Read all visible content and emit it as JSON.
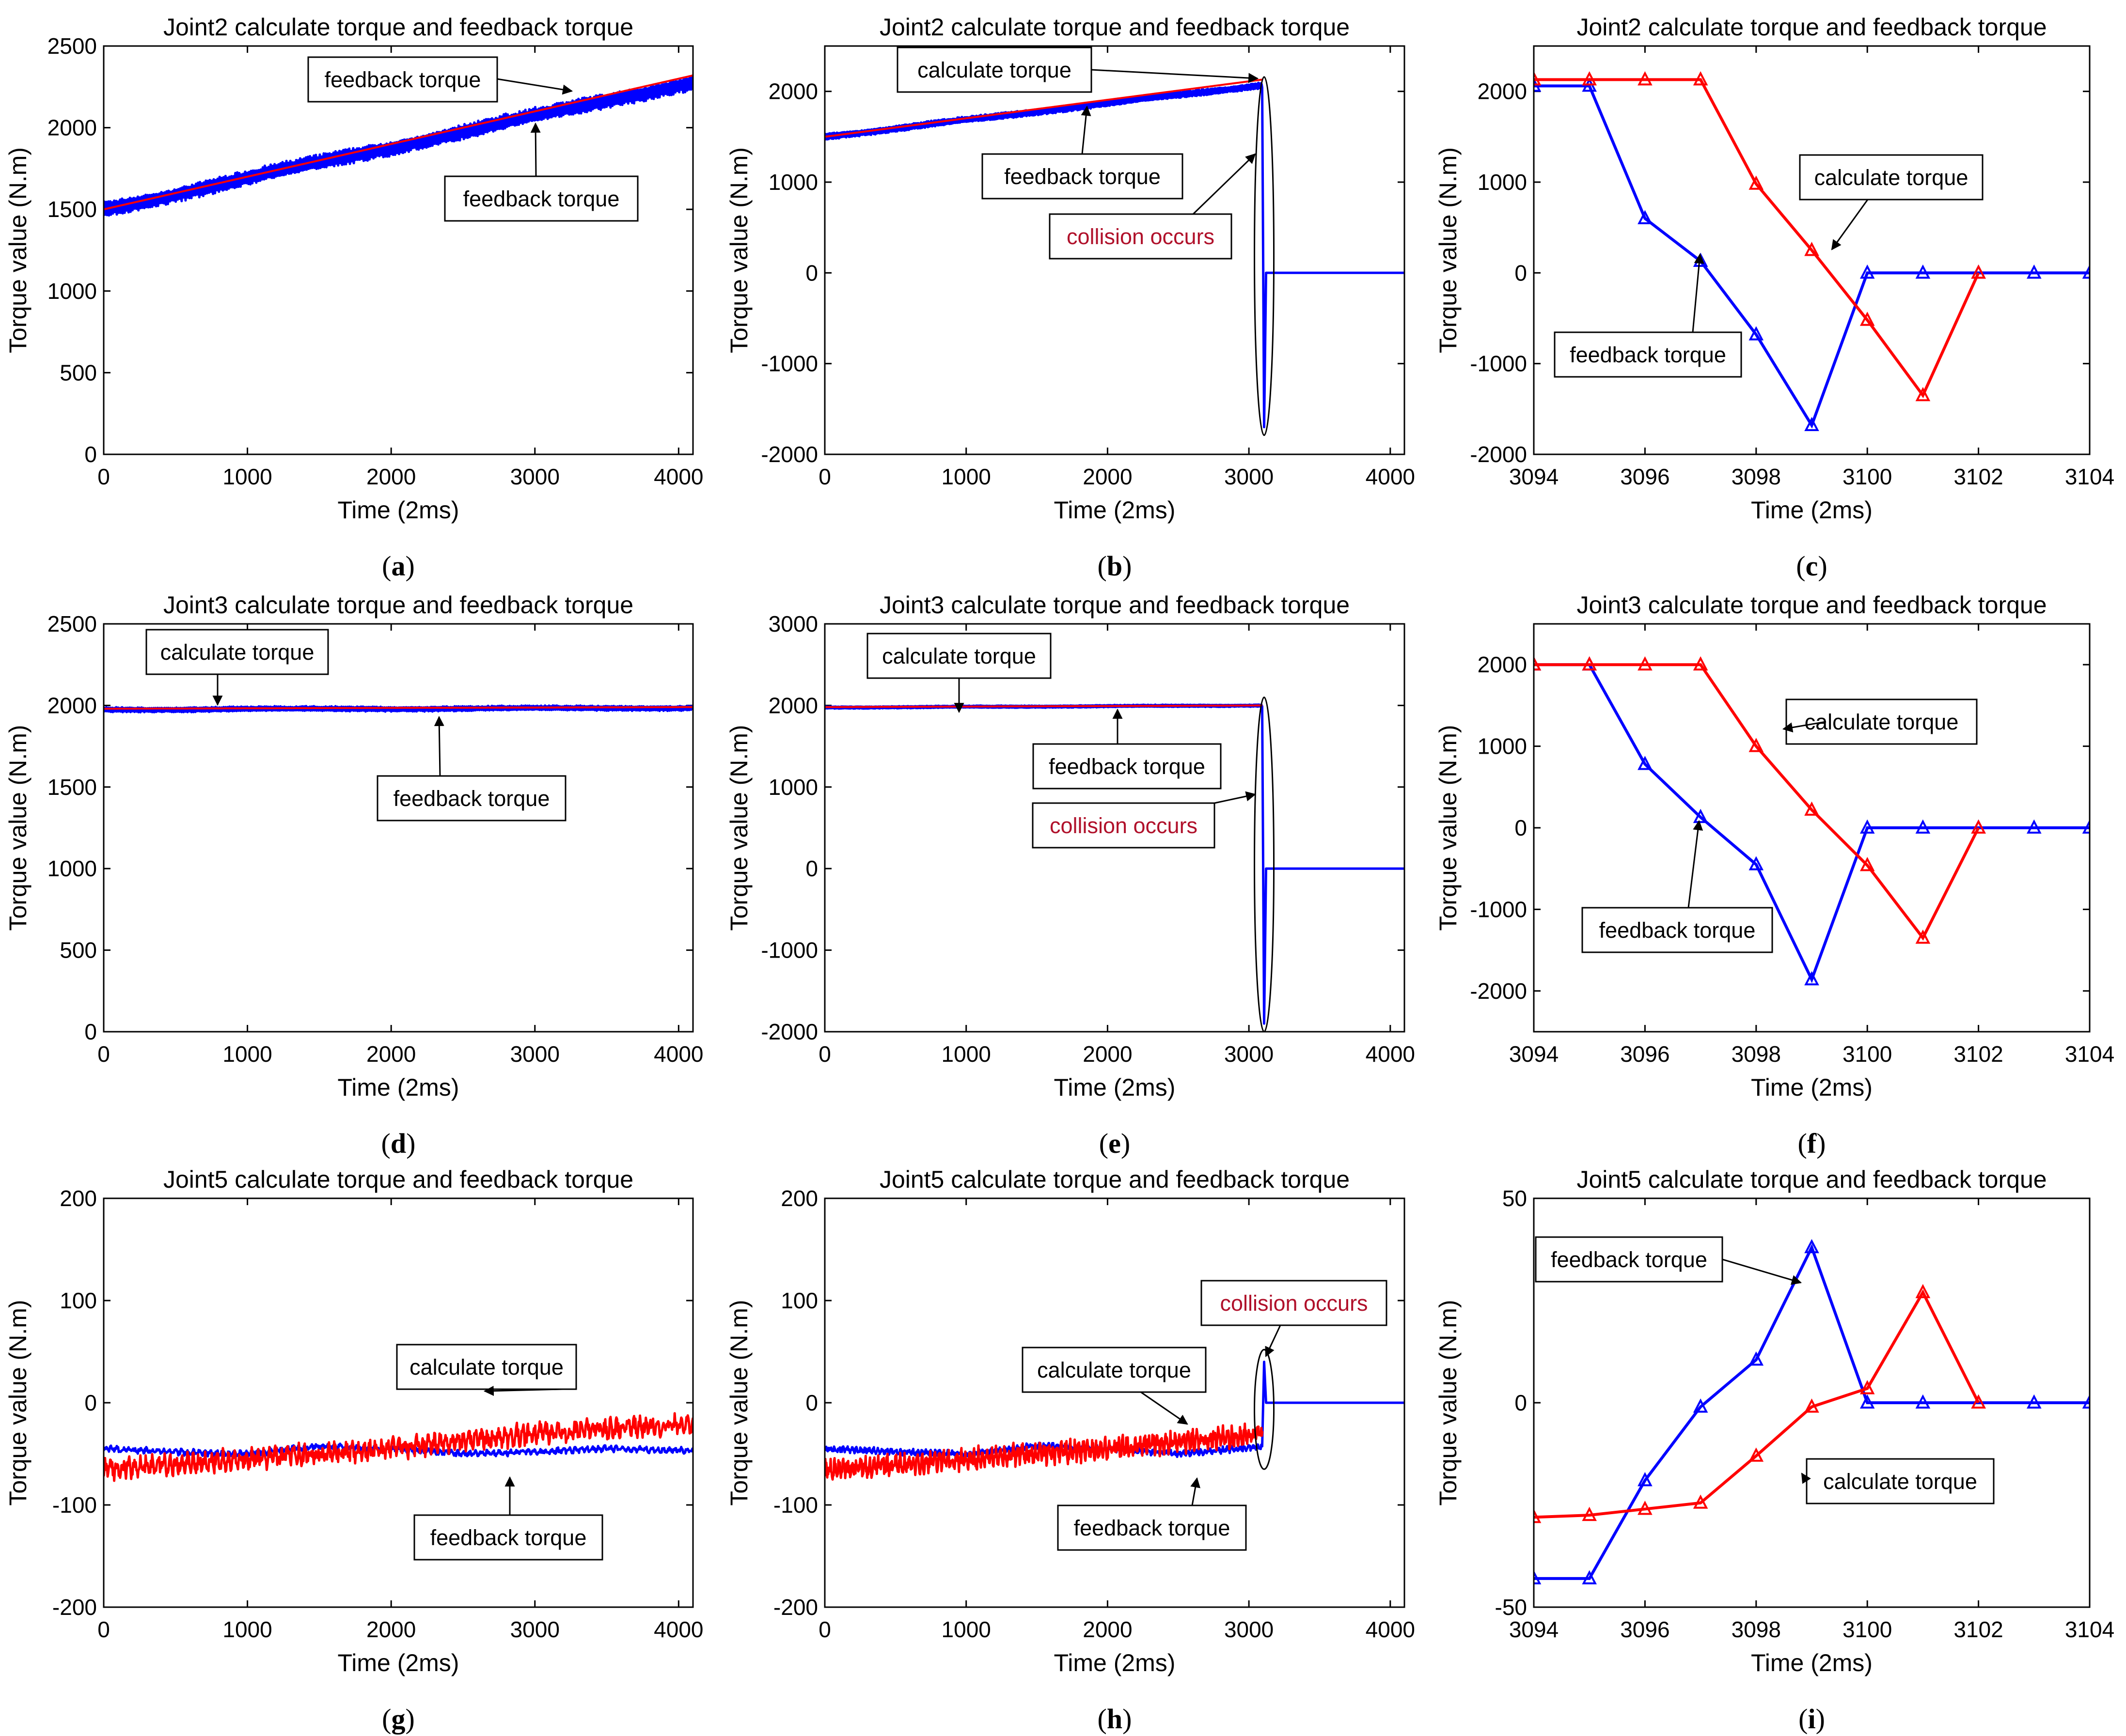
{
  "figure": {
    "colors": {
      "calculate": "#ff0000",
      "feedback": "#0000ff",
      "axis": "#000000",
      "collision_text": "#b0102a"
    },
    "panel_labels": [
      "(a)",
      "(b)",
      "(c)",
      "(d)",
      "(e)",
      "(f)",
      "(g)",
      "(h)",
      "(i)"
    ]
  },
  "chart_data": [
    {
      "id": "a",
      "type": "line",
      "label": "a",
      "label_parts": [
        "(",
        "a",
        ")"
      ],
      "title": "Joint2 calculate torque and feedback torque",
      "xlabel": "Time (2ms)",
      "ylabel": "Torque value (N.m)",
      "xlim": [
        0,
        4100
      ],
      "ylim": [
        0,
        2500
      ],
      "xticks": [
        0,
        1000,
        2000,
        3000,
        4000
      ],
      "yticks": [
        0,
        500,
        1000,
        1500,
        2000,
        2500
      ],
      "series": [
        {
          "name": "calculate torque",
          "color": "red",
          "x": [
            0,
            4100
          ],
          "y": [
            1500,
            2320
          ]
        },
        {
          "name": "feedback torque",
          "color": "blue",
          "x": [
            0,
            4100
          ],
          "y": [
            1500,
            2280
          ],
          "oscillation": 55
        }
      ],
      "annotations": [
        {
          "text": "feedback torque"
        },
        {
          "text": "feedback torque"
        }
      ]
    },
    {
      "id": "b",
      "type": "line",
      "label": "b",
      "label_parts": [
        "(",
        "b",
        ")"
      ],
      "title": "Joint2 calculate torque and feedback torque",
      "xlabel": "Time (2ms)",
      "ylabel": "Torque value (N.m)",
      "xlim": [
        0,
        4100
      ],
      "ylim": [
        -2000,
        2500
      ],
      "xticks": [
        0,
        1000,
        2000,
        3000,
        4000
      ],
      "yticks": [
        -2000,
        -1000,
        0,
        1000,
        2000
      ],
      "series": [
        {
          "name": "calculate torque",
          "color": "red",
          "x": [
            0,
            3095
          ],
          "y": [
            1500,
            2130
          ]
        },
        {
          "name": "feedback torque",
          "color": "blue",
          "x": [
            0,
            3094
          ],
          "y": [
            1500,
            2070
          ],
          "oscillation": 40,
          "collision_at": 3094,
          "collision_min": -1700,
          "after": 0
        }
      ],
      "annotations": [
        {
          "text": "calculate  torque"
        },
        {
          "text": "feedback torque"
        },
        {
          "text": "collision occurs"
        }
      ]
    },
    {
      "id": "c",
      "type": "line",
      "label": "c",
      "label_parts": [
        "(",
        "c",
        ")"
      ],
      "title": "Joint2 calculate torque and feedback torque",
      "xlabel": "Time (2ms)",
      "ylabel": "Torque value (N.m)",
      "xlim": [
        3094,
        3104
      ],
      "ylim": [
        -2000,
        2500
      ],
      "xticks": [
        3094,
        3096,
        3098,
        3100,
        3102,
        3104
      ],
      "yticks": [
        -2000,
        -1000,
        0,
        1000,
        2000
      ],
      "series": [
        {
          "name": "calculate torque",
          "color": "red",
          "x": [
            3094,
            3095,
            3096,
            3097,
            3098,
            3099,
            3100,
            3101,
            3102
          ],
          "y": [
            2130,
            2130,
            2130,
            2130,
            980,
            250,
            -520,
            -1350,
            0
          ]
        },
        {
          "name": "feedback torque",
          "color": "blue",
          "x": [
            3094,
            3095,
            3096,
            3097,
            3098,
            3099,
            3100,
            3101,
            3102,
            3103,
            3104
          ],
          "y": [
            2060,
            2060,
            600,
            130,
            -680,
            -1680,
            0,
            0,
            0,
            0,
            0
          ]
        }
      ],
      "annotations": [
        {
          "text": "calculate torque"
        },
        {
          "text": "feedback torque"
        }
      ]
    },
    {
      "id": "d",
      "type": "line",
      "label": "d",
      "label_parts": [
        "(",
        "d",
        ")"
      ],
      "title": "Joint3 calculate torque and feedback torque",
      "xlabel": "Time (2ms)",
      "ylabel": "Torque value (N.m)",
      "xlim": [
        0,
        4100
      ],
      "ylim": [
        0,
        2500
      ],
      "xticks": [
        0,
        1000,
        2000,
        3000,
        4000
      ],
      "yticks": [
        0,
        500,
        1000,
        1500,
        2000,
        2500
      ],
      "series": [
        {
          "name": "calculate torque",
          "color": "red",
          "x": [
            0,
            4100
          ],
          "y": [
            1980,
            1990
          ]
        },
        {
          "name": "feedback torque",
          "color": "blue",
          "x": [
            0,
            4100
          ],
          "y": [
            1975,
            1985
          ],
          "oscillation": 18
        }
      ],
      "annotations": [
        {
          "text": "calculate torque"
        },
        {
          "text": "feedback torque"
        }
      ]
    },
    {
      "id": "e",
      "type": "line",
      "label": "e",
      "label_parts": [
        "(",
        "e",
        ")"
      ],
      "title": "Joint3 calculate torque and feedback torque",
      "xlabel": "Time (2ms)",
      "ylabel": "Torque value (N.m)",
      "xlim": [
        0,
        4100
      ],
      "ylim": [
        -2000,
        3000
      ],
      "xticks": [
        0,
        1000,
        2000,
        3000,
        4000
      ],
      "yticks": [
        -2000,
        -1000,
        0,
        1000,
        2000,
        3000
      ],
      "series": [
        {
          "name": "calculate torque",
          "color": "red",
          "x": [
            0,
            3095
          ],
          "y": [
            1980,
            2000
          ]
        },
        {
          "name": "feedback torque",
          "color": "blue",
          "x": [
            0,
            3094
          ],
          "y": [
            1975,
            2000
          ],
          "oscillation": 16,
          "collision_at": 3094,
          "collision_min": -1900,
          "after": 0
        }
      ],
      "annotations": [
        {
          "text": "calculate torque"
        },
        {
          "text": "feedback torque"
        },
        {
          "text": "collision occurs"
        }
      ]
    },
    {
      "id": "f",
      "type": "line",
      "label": "f",
      "label_parts": [
        "(",
        "f",
        ")"
      ],
      "title": "Joint3 calculate torque and feedback torque",
      "xlabel": "Time (2ms)",
      "ylabel": "Torque value (N.m)",
      "xlim": [
        3094,
        3104
      ],
      "ylim": [
        -2500,
        2500
      ],
      "xticks": [
        3094,
        3096,
        3098,
        3100,
        3102,
        3104
      ],
      "yticks": [
        -2000,
        -1000,
        0,
        1000,
        2000
      ],
      "series": [
        {
          "name": "calculate torque",
          "color": "red",
          "x": [
            3094,
            3095,
            3096,
            3097,
            3098,
            3099,
            3100,
            3101,
            3102
          ],
          "y": [
            2000,
            2000,
            2000,
            2000,
            1000,
            220,
            -460,
            -1350,
            0
          ]
        },
        {
          "name": "feedback torque",
          "color": "blue",
          "x": [
            3094,
            3095,
            3096,
            3097,
            3098,
            3099,
            3100,
            3101,
            3102,
            3103,
            3104
          ],
          "y": [
            2000,
            2000,
            780,
            130,
            -450,
            -1860,
            0,
            0,
            0,
            0,
            0
          ]
        }
      ],
      "annotations": [
        {
          "text": "calculate torque"
        },
        {
          "text": "feedback torque"
        }
      ]
    },
    {
      "id": "g",
      "type": "line",
      "label": "g",
      "label_parts": [
        "(",
        "g",
        ")"
      ],
      "title": "Joint5 calculate torque and feedback torque",
      "xlabel": "Time (2ms)",
      "ylabel": "Torque value (N.m)",
      "xlim": [
        0,
        4100
      ],
      "ylim": [
        -200,
        200
      ],
      "xticks": [
        0,
        1000,
        2000,
        3000,
        4000
      ],
      "yticks": [
        -200,
        -100,
        0,
        100,
        200
      ],
      "series": [
        {
          "name": "calculate torque",
          "color": "red",
          "x": [
            0,
            1000,
            2000,
            3000,
            4100
          ],
          "y": [
            -65,
            -55,
            -45,
            -30,
            -20
          ],
          "noise": 7
        },
        {
          "name": "feedback torque",
          "color": "blue",
          "x": [
            0,
            500,
            1000,
            1500,
            2000,
            2500,
            3000,
            3500,
            4100
          ],
          "y": [
            -45,
            -48,
            -50,
            -42,
            -45,
            -50,
            -48,
            -45,
            -47
          ],
          "noise": 2
        }
      ],
      "annotations": [
        {
          "text": "calculate torque"
        },
        {
          "text": "feedback torque"
        }
      ]
    },
    {
      "id": "h",
      "type": "line",
      "label": "h",
      "label_parts": [
        "(",
        "h",
        ")"
      ],
      "title": "Joint5 calculate torque and feedback torque",
      "xlabel": "Time (2ms)",
      "ylabel": "Torque value (N.m)",
      "xlim": [
        0,
        4100
      ],
      "ylim": [
        -200,
        200
      ],
      "xticks": [
        0,
        1000,
        2000,
        3000,
        4000
      ],
      "yticks": [
        -200,
        -100,
        0,
        100,
        200
      ],
      "series": [
        {
          "name": "calculate torque",
          "color": "red",
          "x": [
            0,
            1000,
            2000,
            3095
          ],
          "y": [
            -65,
            -55,
            -45,
            -30
          ],
          "noise": 7
        },
        {
          "name": "feedback torque",
          "color": "blue",
          "x": [
            0,
            500,
            1000,
            1500,
            2000,
            2500,
            3094
          ],
          "y": [
            -45,
            -48,
            -50,
            -42,
            -45,
            -50,
            -43
          ],
          "noise": 2,
          "collision_at": 3094,
          "collision_max": 40,
          "after": 0
        }
      ],
      "annotations": [
        {
          "text": "collision occurs"
        },
        {
          "text": "calculate torque"
        },
        {
          "text": "feedback torque"
        }
      ]
    },
    {
      "id": "i",
      "type": "line",
      "label": "i",
      "label_parts": [
        "(",
        "i",
        ")"
      ],
      "title": "Joint5 calculate torque and feedback torque",
      "xlabel": "Time (2ms)",
      "ylabel": "Torque value (N.m)",
      "xlim": [
        3094,
        3104
      ],
      "ylim": [
        -50,
        50
      ],
      "xticks": [
        3094,
        3096,
        3098,
        3100,
        3102,
        3104
      ],
      "yticks": [
        -50,
        0,
        50
      ],
      "series": [
        {
          "name": "calculate torque",
          "color": "red",
          "x": [
            3094,
            3095,
            3096,
            3097,
            3098,
            3099,
            3100,
            3101,
            3102
          ],
          "y": [
            -28,
            -27.5,
            -26,
            -24.5,
            -13,
            -1,
            3.5,
            27,
            0
          ]
        },
        {
          "name": "feedback torque",
          "color": "blue",
          "x": [
            3094,
            3095,
            3096,
            3097,
            3098,
            3099,
            3100,
            3101,
            3102,
            3103,
            3104
          ],
          "y": [
            -43,
            -43,
            -19,
            -1,
            10.5,
            38,
            0,
            0,
            0,
            0,
            0
          ]
        }
      ],
      "annotations": [
        {
          "text": "feedback torque"
        },
        {
          "text": "calculate torque"
        }
      ]
    }
  ]
}
